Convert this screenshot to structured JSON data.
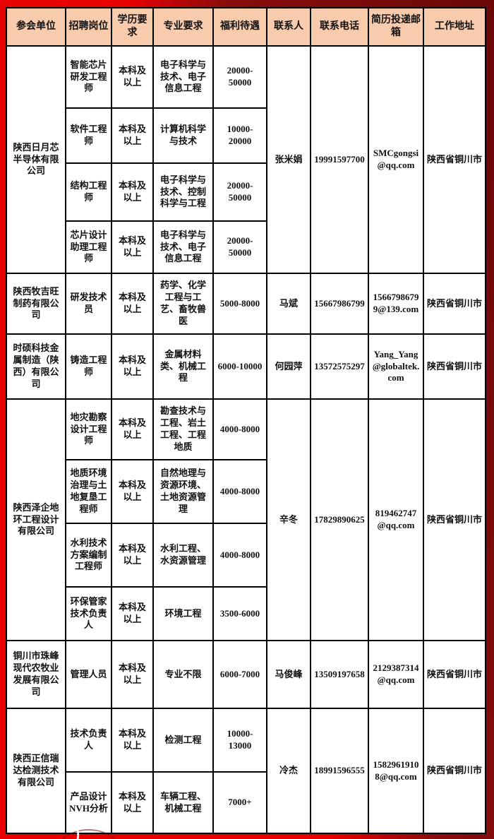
{
  "table": {
    "columns": [
      "参会单位",
      "招聘岗位",
      "学历要求",
      "专业要求",
      "福利待遇",
      "联系人",
      "联系电话",
      "简历投递邮箱",
      "工作地址"
    ],
    "companies": [
      {
        "name": "陕西日月芯半导体有限公司",
        "contact": "张米娟",
        "phone": "19991597700",
        "email": "SMCgongsi@qq.com",
        "address": "陕西省铜川市",
        "jobs": [
          {
            "position": "智能芯片研发工程师",
            "education": "本科及以上",
            "major": "电子科学与技术、电子信息工程",
            "salary": "20000-50000"
          },
          {
            "position": "软件工程师",
            "education": "本科及以上",
            "major": "计算机科学与技术",
            "salary": "10000-20000"
          },
          {
            "position": "结构工程师",
            "education": "本科及以上",
            "major": "电子科学与技术、控制科学与工程",
            "salary": "20000-50000"
          },
          {
            "position": "芯片设计助理工程师",
            "education": "本科及以上",
            "major": "电子科学与技术、电子信息工程",
            "salary": "20000-50000"
          }
        ]
      },
      {
        "name": "陕西牧吉旺制药有限公司",
        "contact": "马斌",
        "phone": "15667986799",
        "email": "15667986799@139.com",
        "address": "陕西省铜川市",
        "jobs": [
          {
            "position": "研发技术员",
            "education": "本科及以上",
            "major": "药学、化学工程与工艺、畜牧兽医",
            "salary": "5000-8000"
          }
        ]
      },
      {
        "name": "时硕科技金属制造（陕西）有限公司",
        "contact": "何园萍",
        "phone": "13572575297",
        "email": "Yang_Yang@globaltek.com",
        "address": "陕西省铜川市",
        "jobs": [
          {
            "position": "铸造工程师",
            "education": "本科及以上",
            "major": "金属材料类、机械工程",
            "salary": "6000-10000"
          }
        ]
      },
      {
        "name": "陕西泽企地环工程设计有限公司",
        "contact": "辛冬",
        "phone": "17829890625",
        "email": "819462747@qq.com",
        "address": "陕西省铜川市",
        "jobs": [
          {
            "position": "地灾勘察设计工程师",
            "education": "本科及以上",
            "major": "勘查技术与工程、岩土工程、工程地质",
            "salary": "4000-8000"
          },
          {
            "position": "地质环境治理与土地复垦工程师",
            "education": "本科及以上",
            "major": "自然地理与资源环境、土地资源管理",
            "salary": "4000-8000"
          },
          {
            "position": "水利技术方案编制工程师",
            "education": "本科及以上",
            "major": "水利工程、水资源管理",
            "salary": "4000-8000"
          },
          {
            "position": "环保管家技术负责人",
            "education": "本科及以上",
            "major": "环境工程",
            "salary": "3500-6000"
          }
        ]
      },
      {
        "name": "铜川市珠峰现代农牧业发展有限公司",
        "contact": "马俊峰",
        "phone": "13509197658",
        "email": "2129387314@qq.com",
        "address": "陕西省铜川市",
        "jobs": [
          {
            "position": "管理人员",
            "education": "本科及以上",
            "major": "专业不限",
            "salary": "6000-7000"
          }
        ]
      },
      {
        "name": "陕西正信瑞达检测技术有限公司",
        "contact": "冷杰",
        "phone": "18991596555",
        "email": "15829619108@qq.com",
        "address": "陕西省铜川市",
        "jobs": [
          {
            "position": "技术负责人",
            "education": "本科及以上",
            "major": "检测工程",
            "salary": "10000-13000"
          },
          {
            "position": "产品设计NVH分析",
            "education": "本科及以上",
            "major": "车辆工程、机械工程",
            "salary": "7000+"
          }
        ]
      }
    ]
  },
  "colors": {
    "header_bg": "#F8CBAD",
    "cell_bg": "#FFFFFF",
    "border": "#000000",
    "background_red": "#E60000",
    "background_dark_red": "#6A0808"
  }
}
